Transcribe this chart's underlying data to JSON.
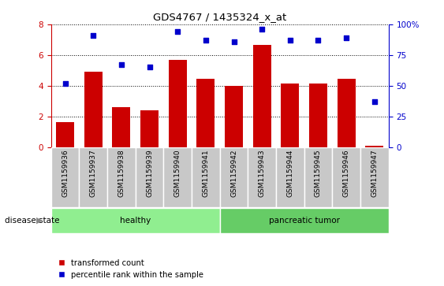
{
  "title": "GDS4767 / 1435324_x_at",
  "samples": [
    "GSM1159936",
    "GSM1159937",
    "GSM1159938",
    "GSM1159939",
    "GSM1159940",
    "GSM1159941",
    "GSM1159942",
    "GSM1159943",
    "GSM1159944",
    "GSM1159945",
    "GSM1159946",
    "GSM1159947"
  ],
  "transformed_count": [
    1.65,
    4.9,
    2.6,
    2.4,
    5.7,
    4.45,
    4.0,
    6.65,
    4.15,
    4.15,
    4.45,
    0.1
  ],
  "percentile_rank": [
    52,
    91,
    67,
    65,
    94,
    87,
    86,
    96,
    87,
    87,
    89,
    37
  ],
  "bar_color": "#CC0000",
  "scatter_color": "#0000CC",
  "ylim_left": [
    0,
    8
  ],
  "ylim_right": [
    0,
    100
  ],
  "yticks_left": [
    0,
    2,
    4,
    6,
    8
  ],
  "yticks_right": [
    0,
    25,
    50,
    75,
    100
  ],
  "background_xtick": "#C8C8C8",
  "healthy_color": "#90EE90",
  "tumor_color": "#66CC66",
  "legend_labels": [
    "transformed count",
    "percentile rank within the sample"
  ],
  "disease_state_label": "disease state",
  "disease_groups": [
    {
      "label": "healthy",
      "start": 0,
      "end": 5
    },
    {
      "label": "pancreatic tumor",
      "start": 6,
      "end": 11
    }
  ],
  "n_samples": 12
}
